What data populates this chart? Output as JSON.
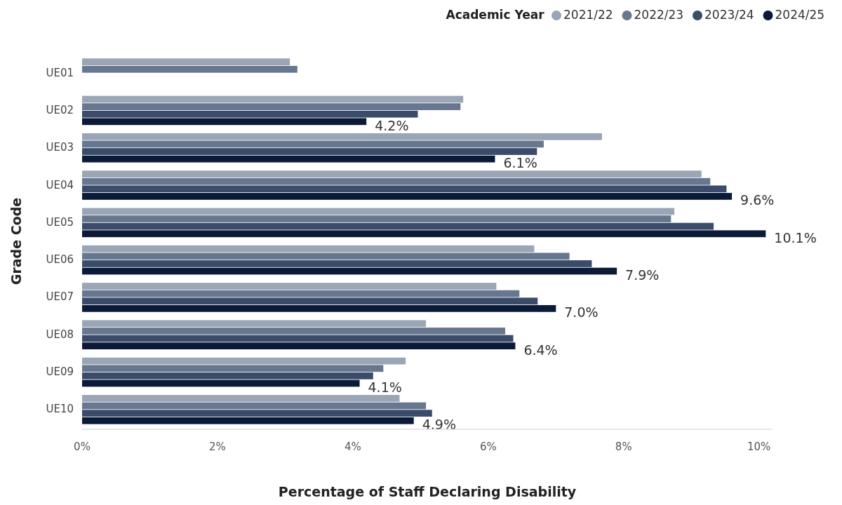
{
  "chart_data": {
    "type": "bar",
    "orientation": "horizontal",
    "xlabel": "Percentage of Staff Declaring Disability",
    "ylabel": "Grade Code",
    "legend_title": "Academic Year",
    "legend": "top right",
    "grid": false,
    "categories": [
      "UE01",
      "UE02",
      "UE03",
      "UE04",
      "UE05",
      "UE06",
      "UE07",
      "UE08",
      "UE09",
      "UE10"
    ],
    "xlim": [
      0,
      10.2
    ],
    "xticks": [
      {
        "value": 0,
        "label": "0%"
      },
      {
        "value": 2,
        "label": "2%"
      },
      {
        "value": 4,
        "label": "4%"
      },
      {
        "value": 6,
        "label": "6%"
      },
      {
        "value": 8,
        "label": "8%"
      },
      {
        "value": 10,
        "label": "10%"
      }
    ],
    "series": [
      {
        "name": "2021/22",
        "color": "#9aa5b5",
        "values": [
          3.07,
          5.63,
          7.68,
          9.15,
          8.75,
          6.68,
          6.12,
          5.08,
          4.78,
          4.69
        ]
      },
      {
        "name": "2022/23",
        "color": "#67778f",
        "values": [
          3.18,
          5.59,
          6.82,
          9.28,
          8.7,
          7.2,
          6.46,
          6.25,
          4.45,
          5.08
        ]
      },
      {
        "name": "2023/24",
        "color": "#3a4c6a",
        "values": [
          null,
          4.96,
          6.72,
          9.52,
          9.33,
          7.53,
          6.73,
          6.37,
          4.3,
          5.17
        ]
      },
      {
        "name": "2024/25",
        "color": "#0b1a36",
        "values": [
          null,
          4.2,
          6.1,
          9.6,
          10.1,
          7.9,
          7.0,
          6.4,
          4.1,
          4.9
        ],
        "value_labels": [
          null,
          "4.2%",
          "6.1%",
          "9.6%",
          "10.1%",
          "7.9%",
          "7.0%",
          "6.4%",
          "4.1%",
          "4.9%"
        ]
      }
    ]
  }
}
